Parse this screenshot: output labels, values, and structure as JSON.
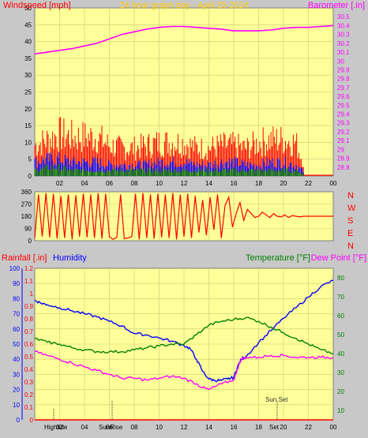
{
  "title": "24 hour graph day - April 25 2024",
  "colors": {
    "plot_bg": "#ffff99",
    "grid": "#c9c97a",
    "wind": "#ff0000",
    "wind_avg": "#0000ff",
    "wind_low": "#008000",
    "barometer": "#ff00ff",
    "direction": "#ff0000",
    "rain": "#ff0000",
    "humidity": "#0000ff",
    "temperature": "#008000",
    "dewpoint": "#ff00ff",
    "title": "#ffcc00"
  },
  "chart_data": [
    {
      "type": "line",
      "labels": {
        "left": "Windspeed [mph]",
        "right": "Barometer [.in]"
      },
      "x_ticks": [
        "02",
        "04",
        "06",
        "08",
        "10",
        "12",
        "14",
        "16",
        "18",
        "20",
        "22",
        "00"
      ],
      "left_ticks": [
        "0",
        "5",
        "10",
        "15",
        "20",
        "25",
        "30",
        "35",
        "40",
        "45",
        "50"
      ],
      "right_ticks": [
        "28.8",
        "28.9",
        "29",
        "29.1",
        "29.2",
        "29.3",
        "29.4",
        "29.5",
        "29.6",
        "29.7",
        "29.8",
        "29.9",
        "30",
        "30.1",
        "30.2",
        "30.3",
        "30.4",
        "30.5"
      ],
      "left_range": [
        0,
        50
      ],
      "right_range": [
        28.7,
        30.6
      ],
      "x_range": [
        0,
        24
      ],
      "series": [
        {
          "key": "barometer",
          "axis": "right",
          "x": [
            0,
            1,
            2,
            3,
            4,
            5,
            6,
            7,
            8,
            9,
            10,
            11,
            12,
            13,
            14,
            15,
            16,
            17,
            18,
            19,
            20,
            21,
            22,
            23,
            24
          ],
          "y": [
            30.08,
            30.1,
            30.12,
            30.14,
            30.17,
            30.2,
            30.25,
            30.3,
            30.33,
            30.36,
            30.38,
            30.39,
            30.39,
            30.38,
            30.37,
            30.36,
            30.34,
            30.34,
            30.34,
            30.35,
            30.37,
            30.38,
            30.38,
            30.39,
            30.4
          ]
        },
        {
          "key": "wind_gust",
          "axis": "left",
          "x": [
            0,
            1,
            2,
            3,
            4,
            5,
            6,
            7,
            8,
            9,
            10,
            11,
            12,
            13,
            14,
            15,
            16,
            17,
            18,
            19,
            20,
            21,
            22,
            23,
            24
          ],
          "y": [
            11,
            13,
            15,
            14,
            14,
            14,
            11,
            10,
            10,
            11,
            12,
            12,
            12,
            10,
            10,
            11,
            11,
            10,
            12,
            13,
            13,
            12,
            0,
            0,
            0
          ]
        },
        {
          "key": "wind_avg",
          "axis": "left",
          "x": [
            0,
            1,
            2,
            3,
            4,
            5,
            6,
            7,
            8,
            9,
            10,
            11,
            12,
            13,
            14,
            15,
            16,
            17,
            18,
            19,
            20,
            21,
            22,
            23,
            24
          ],
          "y": [
            5,
            6,
            6,
            5,
            5,
            5,
            4,
            4,
            4,
            4,
            5,
            5,
            5,
            4,
            4,
            5,
            5,
            4,
            4,
            5,
            5,
            4,
            0,
            0,
            0
          ]
        },
        {
          "key": "wind_low",
          "axis": "left",
          "x": [
            0,
            1,
            2,
            3,
            4,
            5,
            6,
            7,
            8,
            9,
            10,
            11,
            12,
            13,
            14,
            15,
            16,
            17,
            18,
            19,
            20,
            21,
            22,
            23,
            24
          ],
          "y": [
            2,
            3,
            3,
            2,
            2,
            2,
            2,
            2,
            2,
            2,
            2,
            2,
            2,
            2,
            2,
            2,
            2,
            2,
            2,
            2,
            2,
            2,
            0,
            0,
            0
          ]
        }
      ]
    },
    {
      "type": "line",
      "labels": {
        "right": [
          "N",
          "W",
          "S",
          "E",
          "N"
        ]
      },
      "left_ticks": [
        "0",
        "90",
        "180",
        "270",
        "360"
      ],
      "left_range": [
        0,
        360
      ],
      "x_range": [
        0,
        24
      ],
      "series": [
        {
          "key": "direction",
          "x": [
            0,
            0.3,
            0.6,
            0.9,
            1.2,
            1.5,
            1.8,
            2.1,
            2.4,
            2.7,
            3.0,
            3.3,
            3.6,
            3.9,
            4.2,
            4.5,
            4.8,
            5.1,
            5.4,
            5.7,
            6.0,
            6.3,
            6.6,
            6.9,
            7.2,
            7.5,
            7.8,
            8.1,
            8.4,
            8.7,
            9.0,
            9.3,
            9.6,
            9.9,
            10.2,
            10.5,
            10.8,
            11.1,
            11.4,
            11.7,
            12.0,
            12.3,
            12.6,
            12.9,
            13.2,
            13.5,
            13.8,
            14.1,
            14.4,
            14.7,
            15.0,
            15.3,
            15.6,
            15.9,
            16.2,
            16.5,
            16.8,
            17.1,
            17.4,
            17.7,
            18.0,
            18.3,
            18.6,
            18.9,
            19.2,
            19.5,
            19.8,
            20.1,
            20.4,
            20.7,
            21.0,
            21.3,
            21.6,
            21.9,
            22.2,
            23.0,
            24.0
          ],
          "y": [
            20,
            340,
            30,
            350,
            25,
            345,
            15,
            330,
            20,
            340,
            10,
            335,
            30,
            345,
            25,
            340,
            20,
            350,
            15,
            345,
            30,
            10,
            25,
            340,
            15,
            20,
            30,
            345,
            10,
            350,
            20,
            340,
            15,
            345,
            25,
            340,
            20,
            350,
            10,
            340,
            30,
            345,
            20,
            330,
            60,
            300,
            40,
            320,
            80,
            340,
            20,
            260,
            320,
            100,
            200,
            280,
            150,
            230,
            200,
            170,
            180,
            210,
            190,
            170,
            200,
            180,
            175,
            190,
            170,
            185,
            180,
            175,
            180,
            180,
            180,
            180,
            180
          ]
        }
      ]
    },
    {
      "type": "line",
      "labels": {
        "rain": "Rainfall [.in]",
        "humidity": "Humidity",
        "temperature": "Temperature [°F]",
        "dewpoint": "Dew Point [°F]"
      },
      "humidity_ticks": [
        "0",
        "10",
        "20",
        "30",
        "40",
        "50",
        "60",
        "70",
        "80",
        "90",
        "100"
      ],
      "rain_ticks": [
        "0",
        "0.1",
        "0.2",
        "0.3",
        "0.4",
        "0.5",
        "0.6",
        "0.7",
        "0.8",
        "0.9",
        "1",
        "1.1",
        "1.2"
      ],
      "temp_ticks": [
        "10",
        "20",
        "30",
        "40",
        "50",
        "60",
        "70",
        "80"
      ],
      "x_ticks": [
        "02",
        "04",
        "06",
        "08",
        "10",
        "12",
        "14",
        "16",
        "18",
        "20",
        "22",
        "00"
      ],
      "humidity_range": [
        0,
        100
      ],
      "rain_range": [
        0,
        1.2
      ],
      "temp_range": [
        5,
        85
      ],
      "x_range": [
        0,
        24
      ],
      "annotations": [
        "Hightide",
        "SunRise",
        "Sun Set",
        "Set"
      ],
      "series": [
        {
          "key": "humidity",
          "axis": "humidity",
          "x": [
            0,
            0.5,
            1,
            2,
            3,
            4,
            5,
            6,
            7,
            8,
            9,
            10,
            11,
            12,
            12.5,
            13,
            13.5,
            14,
            14.5,
            15,
            15.5,
            16,
            16.3,
            16.6,
            17,
            18,
            19,
            20,
            21,
            22,
            23,
            24
          ],
          "y": [
            79,
            77,
            76,
            74,
            72,
            70,
            68,
            65,
            62,
            57,
            56,
            54,
            52,
            49,
            47,
            40,
            32,
            27,
            26,
            26,
            27,
            28,
            35,
            40,
            42,
            51,
            59,
            67,
            74,
            81,
            88,
            92
          ]
        },
        {
          "key": "temperature",
          "axis": "temp",
          "x": [
            0,
            1,
            2,
            3,
            4,
            5,
            6,
            7,
            8,
            9,
            10,
            11,
            12,
            13,
            14,
            15,
            16,
            17,
            18,
            19,
            20,
            21,
            22,
            23,
            24
          ],
          "y": [
            48,
            46,
            45,
            43,
            42,
            41,
            41,
            41,
            42,
            43,
            44,
            45,
            45,
            50,
            55,
            57,
            58,
            59,
            57,
            54,
            51,
            48,
            45,
            42,
            40
          ]
        },
        {
          "key": "dewpoint",
          "axis": "temp",
          "x": [
            0,
            1,
            2,
            3,
            4,
            5,
            6,
            7,
            8,
            9,
            10,
            11,
            12,
            13,
            13.5,
            14,
            15,
            16,
            16.3,
            16.6,
            17,
            18,
            19,
            20,
            21,
            22,
            23,
            24
          ],
          "y": [
            41,
            39,
            37,
            35,
            33,
            31,
            29,
            27,
            27,
            26,
            27,
            28,
            27,
            24,
            22,
            21,
            24,
            26,
            32,
            37,
            38,
            38,
            39,
            39,
            38,
            38,
            38,
            38
          ]
        },
        {
          "key": "rain",
          "axis": "rain",
          "x": [
            0,
            24
          ],
          "y": [
            0,
            0
          ]
        }
      ]
    }
  ]
}
